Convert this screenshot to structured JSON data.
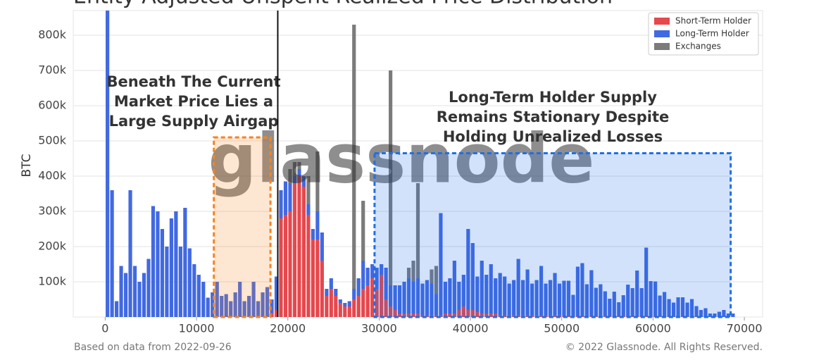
{
  "chart_data": {
    "type": "stacked_histogram",
    "title": "Entity-Adjusted Unspent Realized Price Distribution",
    "y_label": "BTC",
    "footer_left": "Based on data from 2022-09-26",
    "footer_right": "© 2022 Glassnode. All Rights Reserved.",
    "watermark": "glassnode",
    "bins": [
      0,
      500,
      1000,
      1500,
      2000,
      2500,
      3000,
      3500,
      4000,
      4500,
      5000,
      5500,
      6000,
      6500,
      7000,
      7500,
      8000,
      8500,
      9000,
      9500,
      10000,
      10500,
      11000,
      11500,
      12000,
      12500,
      13000,
      13500,
      14000,
      14500,
      15000,
      15500,
      16000,
      16500,
      17000,
      17500,
      18000,
      18500,
      19000,
      19500,
      20000,
      20500,
      21000,
      21500,
      22000,
      22500,
      23000,
      23500,
      24000,
      24500,
      25000,
      25500,
      26000,
      26500,
      27000,
      27500,
      28000,
      28500,
      29000,
      29500,
      30000,
      30500,
      31000,
      31500,
      32000,
      32500,
      33000,
      33500,
      34000,
      34500,
      35000,
      35500,
      36000,
      36500,
      37000,
      37500,
      38000,
      38500,
      39000,
      39500,
      40000,
      40500,
      41000,
      41500,
      42000,
      42500,
      43000,
      43500,
      44000,
      44500,
      45000,
      45500,
      46000,
      46500,
      47000,
      47500,
      48000,
      48500,
      49000,
      49500,
      50000,
      50500,
      51000,
      51500,
      52000,
      52500,
      53000,
      53500,
      54000,
      54500,
      55000,
      55500,
      56000,
      56500,
      57000,
      57500,
      58000,
      58500,
      59000,
      59500,
      60000,
      60500,
      61000,
      61500,
      62000,
      62500,
      63000,
      63500,
      64000,
      64500,
      65000,
      65500,
      66000,
      66500,
      67000,
      67500,
      68000,
      68500,
      69000
    ],
    "series": [
      {
        "name": "Short-Term Holder",
        "color": "#e5484d",
        "values": [
          0,
          0,
          0,
          0,
          0,
          0,
          0,
          0,
          0,
          0,
          0,
          0,
          0,
          0,
          0,
          0,
          0,
          0,
          0,
          0,
          0,
          0,
          0,
          0,
          0,
          0,
          0,
          0,
          0,
          0,
          0,
          0,
          0,
          0,
          0,
          0,
          10000,
          20000,
          280000,
          290000,
          300000,
          380000,
          400000,
          370000,
          290000,
          220000,
          220000,
          160000,
          60000,
          80000,
          60000,
          40000,
          30000,
          30000,
          50000,
          60000,
          80000,
          90000,
          110000,
          80000,
          120000,
          50000,
          30000,
          20000,
          10000,
          10000,
          10000,
          10000,
          10000,
          5000,
          5000,
          5000,
          5000,
          5000,
          10000,
          10000,
          10000,
          20000,
          30000,
          20000,
          20000,
          15000,
          10000,
          10000,
          10000,
          10000,
          5000,
          5000,
          5000,
          5000,
          5000,
          5000,
          5000,
          5000,
          5000,
          5000,
          5000,
          5000,
          5000,
          5000,
          3000,
          3000,
          3000,
          3000,
          3000,
          3000,
          3000,
          3000,
          3000,
          3000,
          2000,
          2000,
          2000,
          2000,
          2000,
          2000,
          2000,
          2000,
          2000,
          2000,
          1000,
          1000,
          1000,
          1000,
          1000,
          1000,
          1000,
          1000,
          1000,
          1000,
          0,
          0,
          0,
          0,
          0,
          0,
          0,
          0
        ]
      },
      {
        "name": "Long-Term Holder",
        "color": "#4169e1",
        "values": [
          870000,
          360000,
          45000,
          145000,
          125000,
          360000,
          145000,
          100000,
          125000,
          165000,
          315000,
          300000,
          250000,
          200000,
          280000,
          300000,
          200000,
          310000,
          195000,
          150000,
          120000,
          100000,
          55000,
          70000,
          100000,
          60000,
          65000,
          45000,
          70000,
          100000,
          45000,
          60000,
          100000,
          45000,
          70000,
          85000,
          40000,
          95000,
          80000,
          95000,
          80000,
          20000,
          20000,
          30000,
          30000,
          30000,
          80000,
          80000,
          20000,
          30000,
          20000,
          10000,
          10000,
          15000,
          30000,
          50000,
          80000,
          50000,
          40000,
          60000,
          30000,
          90000,
          60000,
          70000,
          80000,
          90000,
          100000,
          90000,
          100000,
          90000,
          100000,
          90000,
          60000,
          290000,
          90000,
          100000,
          150000,
          80000,
          90000,
          230000,
          190000,
          100000,
          150000,
          110000,
          140000,
          100000,
          120000,
          110000,
          90000,
          100000,
          160000,
          100000,
          130000,
          90000,
          100000,
          140000,
          90000,
          100000,
          120000,
          90000,
          100000,
          100000,
          60000,
          140000,
          150000,
          90000,
          130000,
          80000,
          90000,
          70000,
          50000,
          70000,
          40000,
          60000,
          90000,
          80000,
          130000,
          80000,
          195000,
          100000,
          100000,
          60000,
          70000,
          50000,
          40000,
          55000,
          55000,
          40000,
          50000,
          30000,
          20000,
          25000,
          10000,
          10000,
          15000,
          20000,
          10000,
          10000
        ]
      },
      {
        "name": "Exchanges",
        "color": "#7b7b7b",
        "values": [
          0,
          0,
          0,
          0,
          0,
          0,
          0,
          0,
          0,
          0,
          0,
          0,
          0,
          0,
          0,
          0,
          0,
          0,
          0,
          0,
          0,
          0,
          0,
          0,
          0,
          0,
          0,
          0,
          0,
          0,
          0,
          0,
          0,
          0,
          0,
          0,
          0,
          0,
          0,
          0,
          40000,
          40000,
          20000,
          0,
          80000,
          0,
          170000,
          0,
          0,
          0,
          0,
          0,
          0,
          0,
          750000,
          0,
          170000,
          0,
          0,
          0,
          0,
          0,
          610000,
          0,
          0,
          0,
          30000,
          60000,
          270000,
          0,
          0,
          40000,
          80000,
          0,
          0,
          0,
          0,
          0,
          0,
          0,
          0,
          0,
          0,
          0,
          0,
          0,
          0,
          0,
          0,
          0,
          0,
          0,
          0,
          0,
          0,
          0,
          0,
          0,
          0,
          0,
          0,
          0,
          0,
          0,
          0,
          0,
          0,
          0,
          0,
          0,
          0,
          0,
          0,
          0,
          0,
          0,
          0,
          0,
          0,
          0,
          0,
          0,
          0,
          0,
          0,
          0,
          0,
          0,
          0,
          0,
          0,
          0,
          0,
          0,
          0,
          0,
          0,
          0
        ]
      }
    ],
    "xlim": [
      -3500,
      72000
    ],
    "ylim": [
      0,
      870000
    ],
    "xticks": [
      0,
      10000,
      20000,
      30000,
      40000,
      50000,
      60000,
      70000
    ],
    "yticks": [
      {
        "value": 100000,
        "label": "100k"
      },
      {
        "value": 200000,
        "label": "200k"
      },
      {
        "value": 300000,
        "label": "300k"
      },
      {
        "value": 400000,
        "label": "400k"
      },
      {
        "value": 500000,
        "label": "500k"
      },
      {
        "value": 600000,
        "label": "600k"
      },
      {
        "value": 700000,
        "label": "700k"
      },
      {
        "value": 800000,
        "label": "800k"
      }
    ],
    "grid": true,
    "legend": "upper right",
    "price_line": 18900,
    "highlights": [
      {
        "x": [
          11900,
          18100
        ],
        "y": [
          0,
          510000
        ],
        "color": "#f5841f",
        "lines": [
          "Beneath The Current",
          "Market Price Lies a",
          "Large Supply Airgap"
        ]
      },
      {
        "x": [
          29500,
          68500
        ],
        "y": [
          0,
          465000
        ],
        "color": "#1f6fe6",
        "lines": [
          "Long-Term Holder Supply",
          "Remains Stationary Despite",
          "Holding Unrealized Losses"
        ]
      }
    ]
  }
}
